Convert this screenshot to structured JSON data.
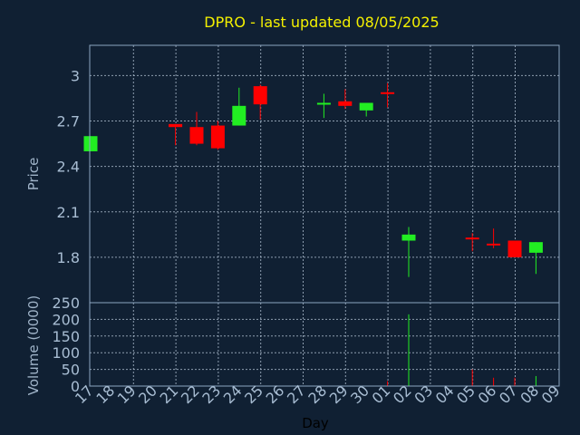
{
  "title": "DPRO - last updated 08/05/2025",
  "colors": {
    "background": "#102033",
    "frame": "#8da6c2",
    "grid": "#b8c8da",
    "title": "#f4f000",
    "label": "#8da6c2",
    "tick": "#a8bdd3",
    "axis_title": "#9fb3c8",
    "up": "#22ee22",
    "down": "#ff0000",
    "doji": "#22ee22"
  },
  "chart_data": [
    {
      "type": "candlestick",
      "ylabel": "Price",
      "ylim": [
        1.5,
        3.2
      ],
      "yticks": [
        "3",
        "2.7",
        "2.4",
        "2.1",
        "1.8"
      ],
      "ytick_values": [
        3.0,
        2.7,
        2.4,
        2.1,
        1.8
      ],
      "grid": true,
      "categories": [
        "17",
        "18",
        "19",
        "20",
        "21",
        "22",
        "23",
        "24",
        "25",
        "26",
        "27",
        "28",
        "29",
        "30",
        "01",
        "02",
        "03",
        "04",
        "05",
        "06",
        "07",
        "08",
        "09"
      ],
      "candles": [
        {
          "day": "17",
          "open": 2.5,
          "high": 2.6,
          "low": 2.5,
          "close": 2.6
        },
        {
          "day": "21",
          "open": 2.68,
          "high": 2.68,
          "low": 2.54,
          "close": 2.66
        },
        {
          "day": "22",
          "open": 2.66,
          "high": 2.76,
          "low": 2.54,
          "close": 2.55
        },
        {
          "day": "23",
          "open": 2.67,
          "high": 2.7,
          "low": 2.51,
          "close": 2.52
        },
        {
          "day": "24",
          "open": 2.67,
          "high": 2.92,
          "low": 2.67,
          "close": 2.8
        },
        {
          "day": "25",
          "open": 2.93,
          "high": 2.94,
          "low": 2.71,
          "close": 2.81
        },
        {
          "day": "28",
          "open": 2.82,
          "high": 2.88,
          "low": 2.72,
          "close": 2.82
        },
        {
          "day": "29",
          "open": 2.83,
          "high": 2.91,
          "low": 2.78,
          "close": 2.8
        },
        {
          "day": "30",
          "open": 2.77,
          "high": 2.81,
          "low": 2.73,
          "close": 2.82
        },
        {
          "day": "01",
          "open": 2.89,
          "high": 2.95,
          "low": 2.79,
          "close": 2.88
        },
        {
          "day": "02",
          "open": 1.91,
          "high": 2.0,
          "low": 1.67,
          "close": 1.95
        },
        {
          "day": "05",
          "open": 1.93,
          "high": 1.96,
          "low": 1.84,
          "close": 1.92
        },
        {
          "day": "06",
          "open": 1.89,
          "high": 1.99,
          "low": 1.86,
          "close": 1.88
        },
        {
          "day": "07",
          "open": 1.91,
          "high": 1.91,
          "low": 1.8,
          "close": 1.8
        },
        {
          "day": "08",
          "open": 1.83,
          "high": 1.9,
          "low": 1.69,
          "close": 1.9
        }
      ]
    },
    {
      "type": "bar",
      "ylabel": "Volume (0000)",
      "xlabel": "Day",
      "ylim": [
        0,
        250
      ],
      "yticks": [
        "250",
        "200",
        "150",
        "100",
        "50",
        "0"
      ],
      "ytick_values": [
        250,
        200,
        150,
        100,
        50,
        0
      ],
      "grid": true,
      "categories": [
        "17",
        "18",
        "19",
        "20",
        "21",
        "22",
        "23",
        "24",
        "25",
        "26",
        "27",
        "28",
        "29",
        "30",
        "01",
        "02",
        "03",
        "04",
        "05",
        "06",
        "07",
        "08",
        "09"
      ],
      "volumes": [
        {
          "day": "01",
          "value": 15,
          "color": "down"
        },
        {
          "day": "02",
          "value": 215,
          "color": "up"
        },
        {
          "day": "05",
          "value": 50,
          "color": "down"
        },
        {
          "day": "06",
          "value": 25,
          "color": "down"
        },
        {
          "day": "07",
          "value": 25,
          "color": "down"
        },
        {
          "day": "08",
          "value": 30,
          "color": "up"
        }
      ]
    }
  ]
}
